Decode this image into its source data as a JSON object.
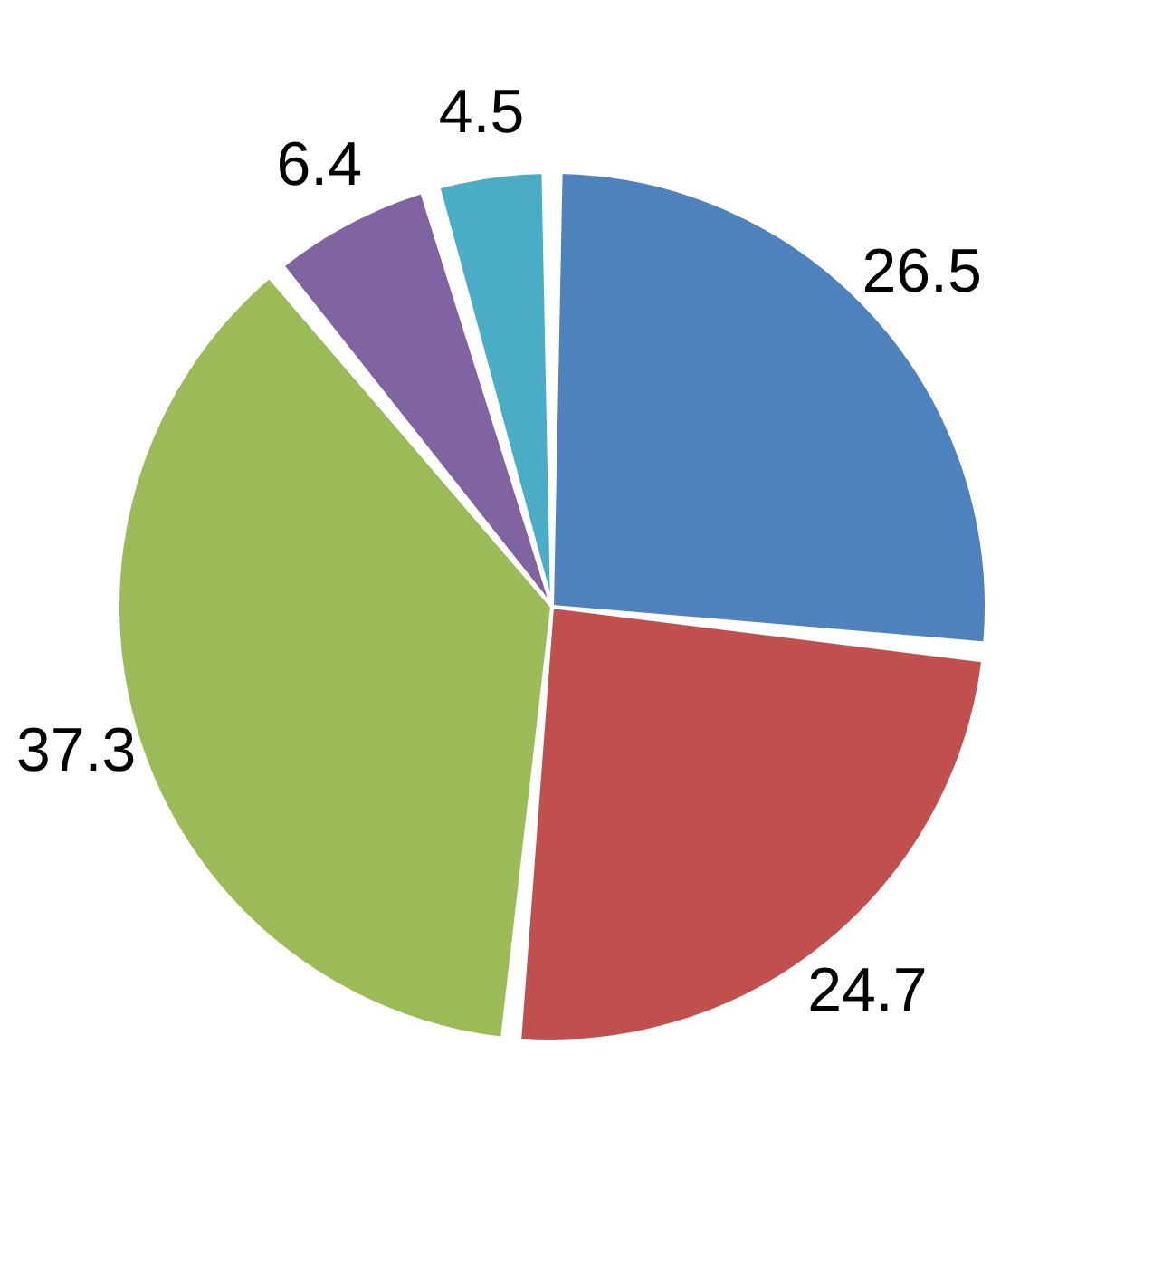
{
  "chart_data": {
    "type": "pie",
    "categories": [
      null,
      null,
      null,
      null,
      null
    ],
    "values": [
      26.5,
      24.7,
      37.3,
      6.4,
      4.5
    ],
    "colors": [
      "#4f81bd",
      "#c0504d",
      "#9bbb59",
      "#8064a2",
      "#4bacc6"
    ],
    "data_labels": true,
    "legend": false
  }
}
